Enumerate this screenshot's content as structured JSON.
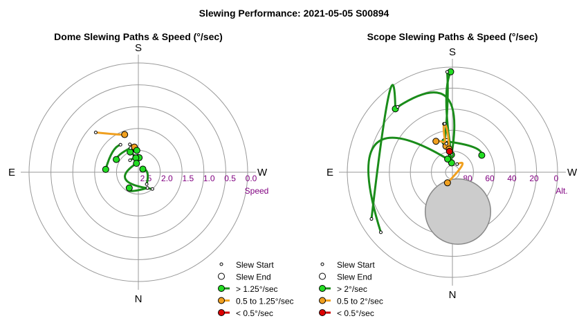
{
  "figure_title": "Slewing Performance: 2021-05-05 S00894",
  "colors": {
    "fast": "#1a8c1a",
    "fast_fill": "#22dd22",
    "medium": "#f0a020",
    "medium_fill": "#f0a020",
    "slow": "#cc0000",
    "slow_fill": "#dd0000",
    "ring_label": "#800080",
    "grid": "#999999",
    "moon_fill": "#cccccc",
    "moon_stroke": "#888888"
  },
  "chart_data": [
    {
      "type": "polar-path",
      "title": "Dome Slewing Paths & Speed (°/sec)",
      "compass": {
        "top": "S",
        "bottom": "N",
        "left": "E",
        "right": "W"
      },
      "radial_axis_label": "Speed",
      "ring_labels": [
        "2.5",
        "2.0",
        "1.5",
        "1.0",
        "0.5",
        "0.0"
      ],
      "legend": [
        {
          "label": "Slew Start",
          "marker": "start"
        },
        {
          "label": "Slew End",
          "marker": "end"
        },
        {
          "label": "> 1.25°/sec",
          "marker": "fast"
        },
        {
          "label": "0.5 to 1.25°/sec",
          "marker": "medium"
        },
        {
          "label": "< 0.5°/sec",
          "marker": "slow"
        }
      ],
      "paths": [
        {
          "speed": "medium",
          "start": [
            -47,
            1.4
          ],
          "mid": [
            -30,
            1.8
          ],
          "end": [
            -20,
            1.9
          ]
        },
        {
          "speed": "medium",
          "start": [
            -17,
            2.2
          ],
          "mid": [
            -13,
            2.25
          ],
          "end": [
            -9,
            2.3
          ]
        },
        {
          "speed": "fast",
          "start": [
            -10,
            2.4
          ],
          "mid": [
            -6,
            2.4
          ],
          "end": [
            -4,
            2.4
          ]
        },
        {
          "speed": "fast",
          "start": [
            -14,
            2.55
          ],
          "mid": [
            -18,
            2.45
          ],
          "end": [
            -22,
            2.4
          ]
        },
        {
          "speed": "fast",
          "start": [
            -2,
            2.55
          ],
          "mid": [
            2,
            2.6
          ],
          "end": [
            3,
            2.6
          ]
        },
        {
          "speed": "fast",
          "start": [
            -33,
            2.1
          ],
          "mid": [
            -52,
            2.1
          ],
          "end": [
            -85,
            2.1
          ]
        },
        {
          "speed": "fast",
          "start": [
            -18,
            2.3
          ],
          "mid": [
            -45,
            2.3
          ],
          "end": [
            -60,
            2.3
          ]
        },
        {
          "speed": "fast",
          "start": [
            -35,
            2.6
          ],
          "mid": [
            -25,
            2.6
          ],
          "end": [
            -10,
            2.6
          ]
        },
        {
          "speed": "fast",
          "start": [
            -220,
            2.4
          ],
          "mid": [
            -120,
            2.6
          ],
          "end": [
            -12,
            2.75
          ]
        },
        {
          "speed": "fast",
          "start": [
            -215,
            2.6
          ],
          "mid": [
            -265,
            2.75
          ],
          "end": [
            -305,
            2.85
          ]
        },
        {
          "speed": "fast",
          "start": [
            -210,
            2.5
          ],
          "mid": [
            -160,
            2.45
          ],
          "end": [
            -150,
            2.5
          ]
        }
      ]
    },
    {
      "type": "polar-path",
      "title": "Scope Slewing Paths & Speed (°/sec)",
      "compass": {
        "top": "S",
        "bottom": "N",
        "left": "E",
        "right": "W"
      },
      "radial_axis_label": "Alt.",
      "ring_labels": [
        "80",
        "60",
        "40",
        "20",
        "0"
      ],
      "legend": [
        {
          "label": "Slew Start",
          "marker": "start"
        },
        {
          "label": "Slew End",
          "marker": "end"
        },
        {
          "label": "> 2°/sec",
          "marker": "fast"
        },
        {
          "label": "0.5 to 2°/sec",
          "marker": "medium"
        },
        {
          "label": "< 0.5°/sec",
          "marker": "slow"
        }
      ],
      "moon": {
        "az": 172,
        "alt": 56,
        "size_deg": 28
      },
      "paths": [
        {
          "speed": "fast",
          "start": [
            -120,
            10
          ],
          "mid": [
            -40,
            5
          ],
          "end": [
            -42,
            17
          ]
        },
        {
          "speed": "fast",
          "start": [
            -40,
            17
          ],
          "mid": [
            -5,
            25
          ],
          "end": [
            -3,
            75
          ]
        },
        {
          "speed": "fast",
          "start": [
            -3,
            75
          ],
          "mid": [
            -5,
            30
          ],
          "end": [
            -1,
            4
          ]
        },
        {
          "speed": "fast",
          "start": [
            -3,
            4
          ],
          "mid": [
            -4,
            30
          ],
          "end": [
            -14,
            63
          ]
        },
        {
          "speed": "fast",
          "start": [
            -12,
            63
          ],
          "mid": [
            40,
            62
          ],
          "end": [
            60,
            61
          ]
        },
        {
          "speed": "fast",
          "start": [
            -10,
            62
          ],
          "mid": [
            -6,
            75
          ],
          "end": [
            -5,
            82
          ]
        },
        {
          "speed": "fast",
          "start": [
            -130,
            10
          ],
          "mid": [
            -70,
            20
          ],
          "end": [
            -20,
            78
          ]
        },
        {
          "speed": "medium",
          "start": [
            -10,
            48
          ],
          "mid": [
            -12,
            55
          ],
          "end": [
            -14,
            67
          ]
        },
        {
          "speed": "medium",
          "start": [
            -9,
            48
          ],
          "mid": [
            -7,
            55
          ],
          "end": [
            -8,
            70
          ]
        },
        {
          "speed": "medium",
          "start": [
            -12,
            65
          ],
          "mid": [
            -20,
            62
          ],
          "end": [
            -28,
            60
          ]
        },
        {
          "speed": "medium",
          "start": [
            30,
            82
          ],
          "mid": [
            55,
            80
          ],
          "end": [
            -155,
            80
          ]
        },
        {
          "speed": "slow",
          "start": [
            -10,
            72
          ],
          "mid": [
            -9,
            72
          ],
          "end": [
            -8,
            72
          ]
        }
      ]
    }
  ]
}
